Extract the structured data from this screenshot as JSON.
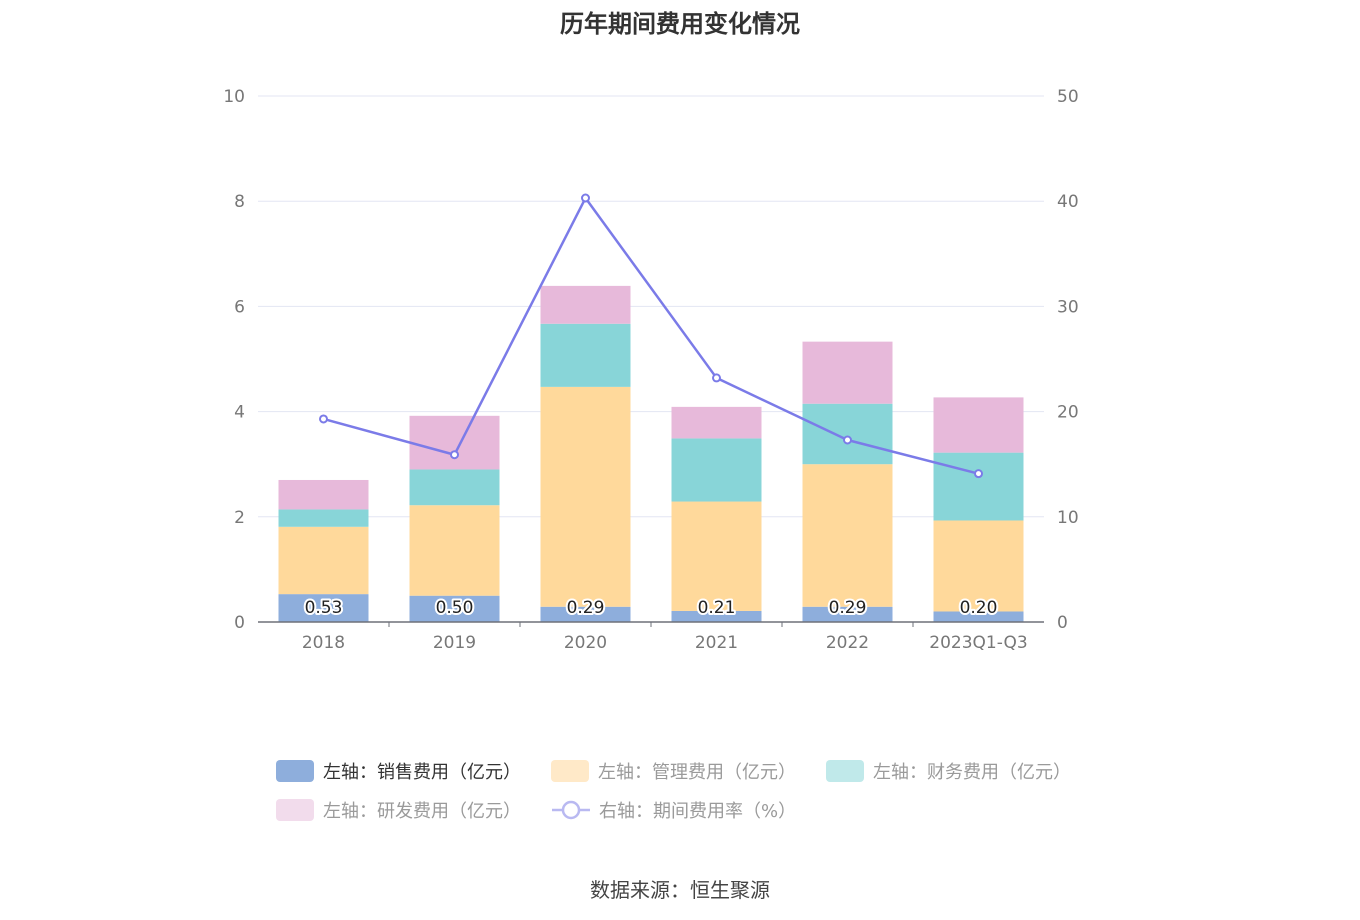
{
  "chart_data": {
    "type": "bar",
    "stacked": true,
    "title": "历年期间费用变化情况",
    "categories": [
      "2018",
      "2019",
      "2020",
      "2021",
      "2022",
      "2023Q1-Q3"
    ],
    "left_axis": {
      "min": 0,
      "max": 10,
      "ticks": [
        "0",
        "2",
        "4",
        "6",
        "8",
        "10"
      ]
    },
    "right_axis": {
      "min": 0,
      "max": 50,
      "ticks": [
        "0",
        "10",
        "20",
        "30",
        "40",
        "50"
      ]
    },
    "series": [
      {
        "name": "左轴：销售费用（亿元）",
        "axis": "left",
        "color": "#8eaedc",
        "values": [
          0.53,
          0.5,
          0.29,
          0.21,
          0.29,
          0.2
        ],
        "labels": [
          "0.53",
          "0.50",
          "0.29",
          "0.21",
          "0.29",
          "0.20"
        ]
      },
      {
        "name": "左轴：管理费用（亿元）",
        "axis": "left",
        "color": "#ffd99b",
        "values": [
          1.28,
          1.72,
          4.18,
          2.08,
          2.71,
          1.73
        ]
      },
      {
        "name": "左轴：财务费用（亿元）",
        "axis": "left",
        "color": "#88d5d8",
        "values": [
          0.33,
          0.68,
          1.2,
          1.2,
          1.15,
          1.29
        ]
      },
      {
        "name": "左轴：研发费用（亿元）",
        "axis": "left",
        "color": "#e7b9da",
        "values": [
          0.56,
          1.02,
          0.72,
          0.6,
          1.18,
          1.05
        ]
      },
      {
        "name": "右轴：期间费用率（%）",
        "axis": "right",
        "type": "line",
        "color": "#7b7be8",
        "values": [
          19.3,
          15.9,
          40.3,
          23.2,
          17.3,
          14.1
        ]
      }
    ],
    "legend_position": "bottom"
  },
  "legend_swatch_colors": [
    "#8eaedc",
    "#ffe9c8",
    "#c0e9ea",
    "#f2dcec",
    "#b9b9f1"
  ],
  "source": "数据来源：恒生聚源"
}
